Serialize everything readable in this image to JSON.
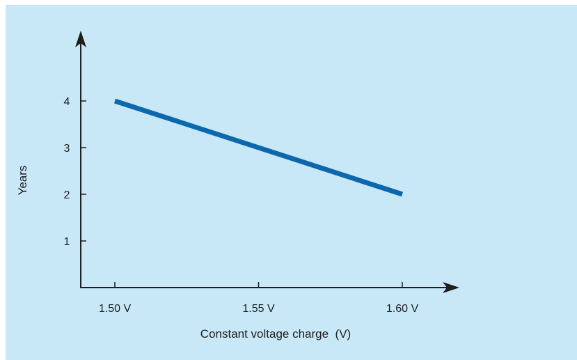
{
  "chart_data": {
    "type": "line",
    "title": "",
    "xlabel": "Constant voltage charge  (V)",
    "ylabel": "Years",
    "x_ticks": [
      {
        "value": 1.5,
        "label": "1.50 V"
      },
      {
        "value": 1.55,
        "label": "1.55 V"
      },
      {
        "value": 1.6,
        "label": "1.60 V"
      }
    ],
    "y_ticks": [
      {
        "value": 1,
        "label": "1"
      },
      {
        "value": 2,
        "label": "2"
      },
      {
        "value": 3,
        "label": "3"
      },
      {
        "value": 4,
        "label": "4"
      }
    ],
    "xlim": [
      1.488,
      1.62
    ],
    "ylim": [
      0,
      5
    ],
    "grid": false,
    "series": [
      {
        "color": "#0b68ad",
        "points": [
          {
            "x": 1.5,
            "y": 4
          },
          {
            "x": 1.6,
            "y": 2
          }
        ]
      }
    ],
    "colors": {
      "background": "#c8e8f8",
      "axis": "#1e1e1e",
      "line": "#0b68ad"
    }
  }
}
